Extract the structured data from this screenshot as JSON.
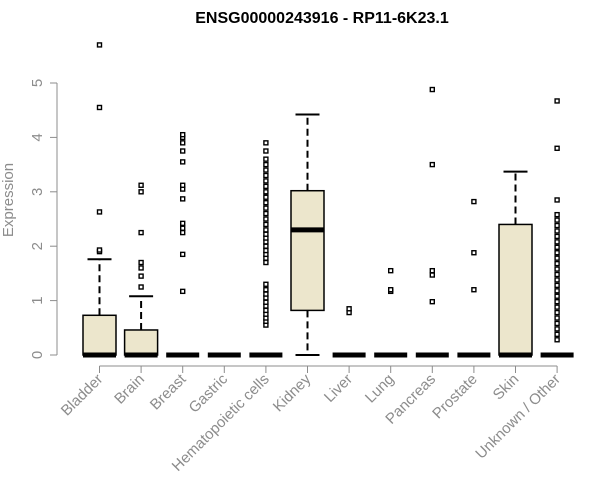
{
  "chart_data": {
    "type": "box",
    "title": "ENSG00000243916 - RP11-6K23.1",
    "ylabel": "Expression",
    "xlabel": "",
    "ylim": [
      0,
      5.8
    ],
    "yticks": [
      0,
      1,
      2,
      3,
      4,
      5
    ],
    "grid": false,
    "box_fill": "#ece6cc",
    "categories": [
      "Bladder",
      "Brain",
      "Breast",
      "Gastric",
      "Hematopoietic cells",
      "Kidney",
      "Liver",
      "Lung",
      "Pancreas",
      "Prostate",
      "Skin",
      "Unknown / Other"
    ],
    "boxes": [
      {
        "q1": 0,
        "median": 0,
        "q3": 0.73,
        "whisker_low": 0,
        "whisker_high": 1.76,
        "outliers": [
          1.9,
          1.93,
          2.63,
          4.55,
          5.7
        ]
      },
      {
        "q1": 0,
        "median": 0,
        "q3": 0.46,
        "whisker_low": 0,
        "whisker_high": 1.08,
        "outliers": [
          1.25,
          1.45,
          1.6,
          1.7,
          2.25,
          3.0,
          3.12
        ]
      },
      {
        "q1": 0,
        "median": 0,
        "q3": 0,
        "whisker_low": 0,
        "whisker_high": 0,
        "outliers": [
          1.17,
          1.85,
          2.25,
          2.33,
          2.42,
          2.87,
          3.05,
          3.12,
          3.55,
          3.75,
          3.9,
          4.0,
          4.05
        ]
      },
      {
        "q1": 0,
        "median": 0,
        "q3": 0,
        "whisker_low": 0,
        "whisker_high": 0,
        "outliers": []
      },
      {
        "q1": 0,
        "median": 0,
        "q3": 0,
        "whisker_low": 0,
        "whisker_high": 0,
        "outliers": [
          0.55,
          0.62,
          0.68,
          0.75,
          0.82,
          0.9,
          0.97,
          1.05,
          1.12,
          1.2,
          1.3,
          1.7,
          1.78,
          1.85,
          1.92,
          2.0,
          2.08,
          2.15,
          2.22,
          2.3,
          2.4,
          2.5,
          2.6,
          2.7,
          2.8,
          2.9,
          3.0,
          3.1,
          3.2,
          3.3,
          3.4,
          3.5,
          3.6,
          3.75,
          3.9
        ]
      },
      {
        "q1": 0.82,
        "median": 2.3,
        "q3": 3.02,
        "whisker_low": 0,
        "whisker_high": 4.42,
        "outliers": []
      },
      {
        "q1": 0,
        "median": 0,
        "q3": 0,
        "whisker_low": 0,
        "whisker_high": 0,
        "outliers": [
          0.78,
          0.85
        ]
      },
      {
        "q1": 0,
        "median": 0,
        "q3": 0,
        "whisker_low": 0,
        "whisker_high": 0,
        "outliers": [
          1.17,
          1.2,
          1.55
        ]
      },
      {
        "q1": 0,
        "median": 0,
        "q3": 0,
        "whisker_low": 0,
        "whisker_high": 0,
        "outliers": [
          0.98,
          1.47,
          1.55,
          3.5,
          4.88
        ]
      },
      {
        "q1": 0,
        "median": 0,
        "q3": 0,
        "whisker_low": 0,
        "whisker_high": 0,
        "outliers": [
          1.2,
          1.88,
          2.82
        ]
      },
      {
        "q1": 0,
        "median": 0,
        "q3": 2.4,
        "whisker_low": 0,
        "whisker_high": 3.37,
        "outliers": []
      },
      {
        "q1": 0,
        "median": 0,
        "q3": 0,
        "whisker_low": 0,
        "whisker_high": 0,
        "outliers": [
          0.28,
          0.38,
          0.48,
          0.58,
          0.68,
          0.78,
          0.88,
          0.98,
          1.08,
          1.18,
          1.28,
          1.38,
          1.48,
          1.58,
          1.68,
          1.78,
          1.88,
          1.98,
          2.08,
          2.18,
          2.28,
          2.38,
          2.48,
          2.58,
          2.85,
          3.8,
          4.67
        ]
      }
    ]
  }
}
